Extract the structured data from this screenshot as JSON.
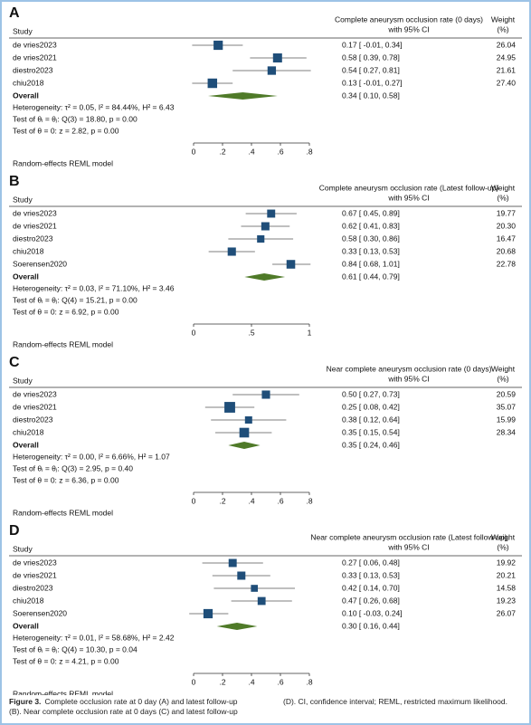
{
  "chart_data": [
    {
      "type": "forest",
      "panel": "A",
      "study_header": "Study",
      "effect_header": [
        "Complete aneurysm occlusion rate (0 days)",
        "with 95% CI"
      ],
      "weight_header": [
        "Weight",
        "(%)"
      ],
      "studies": [
        "de vries2023",
        "de vries2021",
        "diestro2023",
        "chiu2018"
      ],
      "values": [
        0.17,
        0.58,
        0.54,
        0.13
      ],
      "ci_low": [
        -0.01,
        0.39,
        0.27,
        -0.01
      ],
      "ci_high": [
        0.34,
        0.78,
        0.81,
        0.27
      ],
      "value_labels": [
        "0.17 [ -0.01, 0.34]",
        "0.58 [ 0.39, 0.78]",
        "0.54 [ 0.27, 0.81]",
        "0.13 [ -0.01, 0.27]"
      ],
      "weights": [
        26.04,
        24.95,
        21.61,
        27.4
      ],
      "weight_labels": [
        "26.04",
        "24.95",
        "21.61",
        "27.40"
      ],
      "overall": {
        "label": "Overall",
        "value": 0.34,
        "ci_low": 0.1,
        "ci_high": 0.58,
        "value_label": "0.34 [ 0.10, 0.58]"
      },
      "stats": [
        "Heterogeneity: τ² = 0.05, I² = 84.44%, H² = 6.43",
        "Test of θᵢ = θⱼ: Q(3) = 18.80, p = 0.00",
        "Test of θ = 0: z = 2.82, p = 0.00"
      ],
      "model": "Random-effects REML model",
      "xlim": [
        0,
        0.8
      ],
      "xticks": [
        0,
        {
          "value": 0.2,
          "label": ".2"
        },
        {
          "value": 0.4,
          "label": ".4"
        },
        {
          "value": 0.6,
          "label": ".6"
        },
        {
          "value": 0.8,
          "label": ".8"
        }
      ]
    },
    {
      "type": "forest",
      "panel": "B",
      "study_header": "Study",
      "effect_header": [
        "Complete aneurysm occlusion rate (Latest follow-up)",
        "with 95% CI"
      ],
      "weight_header": [
        "Weight",
        "(%)"
      ],
      "studies": [
        "de vries2023",
        "de vries2021",
        "diestro2023",
        "chiu2018",
        "Soerensen2020"
      ],
      "values": [
        0.67,
        0.62,
        0.58,
        0.33,
        0.84
      ],
      "ci_low": [
        0.45,
        0.41,
        0.3,
        0.13,
        0.68
      ],
      "ci_high": [
        0.89,
        0.83,
        0.86,
        0.53,
        1.01
      ],
      "value_labels": [
        "0.67 [ 0.45, 0.89]",
        "0.62 [ 0.41, 0.83]",
        "0.58 [ 0.30, 0.86]",
        "0.33 [ 0.13, 0.53]",
        "0.84 [ 0.68, 1.01]"
      ],
      "weights": [
        19.77,
        20.3,
        16.47,
        20.68,
        22.78
      ],
      "weight_labels": [
        "19.77",
        "20.30",
        "16.47",
        "20.68",
        "22.78"
      ],
      "overall": {
        "label": "Overall",
        "value": 0.61,
        "ci_low": 0.44,
        "ci_high": 0.79,
        "value_label": "0.61 [ 0.44, 0.79]"
      },
      "stats": [
        "Heterogeneity: τ² = 0.03, I² = 71.10%, H² = 3.46",
        "Test of θᵢ = θⱼ: Q(4) = 15.21, p = 0.00",
        "Test of θ = 0: z = 6.92, p = 0.00"
      ],
      "model": "Random-effects REML model",
      "xlim": [
        0,
        1
      ],
      "xticks": [
        0,
        {
          "value": 0.5,
          "label": ".5"
        },
        1
      ]
    },
    {
      "type": "forest",
      "panel": "C",
      "study_header": "Study",
      "effect_header": [
        "Near complete aneurysm occlusion rate (0 days)",
        "with 95% CI"
      ],
      "weight_header": [
        "Weight",
        "(%)"
      ],
      "studies": [
        "de vries2023",
        "de vries2021",
        "diestro2023",
        "chiu2018"
      ],
      "values": [
        0.5,
        0.25,
        0.38,
        0.35
      ],
      "ci_low": [
        0.27,
        0.08,
        0.12,
        0.15
      ],
      "ci_high": [
        0.73,
        0.42,
        0.64,
        0.54
      ],
      "value_labels": [
        "0.50 [ 0.27, 0.73]",
        "0.25 [ 0.08, 0.42]",
        "0.38 [ 0.12, 0.64]",
        "0.35 [ 0.15, 0.54]"
      ],
      "weights": [
        20.59,
        35.07,
        15.99,
        28.34
      ],
      "weight_labels": [
        "20.59",
        "35.07",
        "15.99",
        "28.34"
      ],
      "overall": {
        "label": "Overall",
        "value": 0.35,
        "ci_low": 0.24,
        "ci_high": 0.46,
        "value_label": "0.35 [ 0.24, 0.46]"
      },
      "stats": [
        "Heterogeneity: τ² = 0.00, I² = 6.66%, H² = 1.07",
        "Test of θᵢ = θⱼ: Q(3) = 2.95, p = 0.40",
        "Test of θ = 0: z = 6.36, p = 0.00"
      ],
      "model": "Random-effects REML model",
      "xlim": [
        0,
        0.8
      ],
      "xticks": [
        0,
        {
          "value": 0.2,
          "label": ".2"
        },
        {
          "value": 0.4,
          "label": ".4"
        },
        {
          "value": 0.6,
          "label": ".6"
        },
        {
          "value": 0.8,
          "label": ".8"
        }
      ]
    },
    {
      "type": "forest",
      "panel": "D",
      "study_header": "Study",
      "effect_header": [
        "Near complete aneurysm occlusion rate (Latest follow-up)",
        "with 95% CI"
      ],
      "weight_header": [
        "Weight",
        "(%)"
      ],
      "studies": [
        "de vries2023",
        "de vries2021",
        "diestro2023",
        "chiu2018",
        "Soerensen2020"
      ],
      "values": [
        0.27,
        0.33,
        0.42,
        0.47,
        0.1
      ],
      "ci_low": [
        0.06,
        0.13,
        0.14,
        0.26,
        -0.03
      ],
      "ci_high": [
        0.48,
        0.53,
        0.7,
        0.68,
        0.24
      ],
      "value_labels": [
        "0.27 [ 0.06, 0.48]",
        "0.33 [ 0.13, 0.53]",
        "0.42 [ 0.14, 0.70]",
        "0.47 [ 0.26, 0.68]",
        "0.10 [ -0.03, 0.24]"
      ],
      "weights": [
        19.92,
        20.21,
        14.58,
        19.23,
        26.07
      ],
      "weight_labels": [
        "19.92",
        "20.21",
        "14.58",
        "19.23",
        "26.07"
      ],
      "overall": {
        "label": "Overall",
        "value": 0.3,
        "ci_low": 0.16,
        "ci_high": 0.44,
        "value_label": "0.30 [ 0.16, 0.44]"
      },
      "stats": [
        "Heterogeneity: τ² = 0.01, I² = 58.68%, H² = 2.42",
        "Test of θᵢ = θⱼ: Q(4) = 10.30, p = 0.04",
        "Test of θ = 0: z = 4.21, p = 0.00"
      ],
      "model": "Random-effects REML model",
      "xlim": [
        0,
        0.8
      ],
      "xticks": [
        0,
        {
          "value": 0.2,
          "label": ".2"
        },
        {
          "value": 0.4,
          "label": ".4"
        },
        {
          "value": 0.6,
          "label": ".6"
        },
        {
          "value": 0.8,
          "label": ".8"
        }
      ]
    }
  ],
  "caption": {
    "label": "Figure 3.",
    "text": "Complete occlusion rate at 0 day (A) and latest follow-up (B). Near complete occlusion rate at 0 days (C) and latest follow-up (D). CI, confidence interval; REML, restricted maximum likelihood."
  }
}
